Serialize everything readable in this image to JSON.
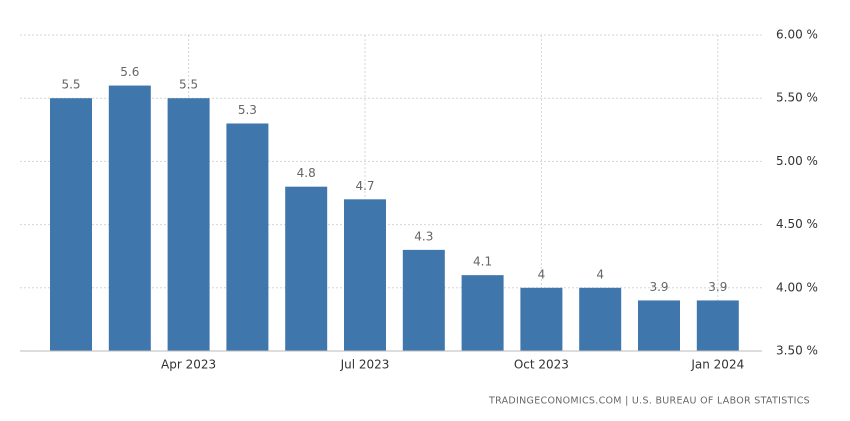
{
  "chart_data": {
    "type": "bar",
    "categories": [
      null,
      null,
      "Apr 2023",
      null,
      null,
      "Jul 2023",
      null,
      null,
      "Oct 2023",
      null,
      null,
      "Jan 2024"
    ],
    "values": [
      5.5,
      5.6,
      5.5,
      5.3,
      4.8,
      4.7,
      4.3,
      4.1,
      4,
      4,
      3.9,
      3.9
    ],
    "color": "#3f77ad",
    "ylim": [
      3.5,
      6.0
    ],
    "yticks": [
      {
        "value": 3.5,
        "label": "3.50 %"
      },
      {
        "value": 4.0,
        "label": "4.00 %"
      },
      {
        "value": 4.5,
        "label": "4.50 %"
      },
      {
        "value": 5.0,
        "label": "5.00 %"
      },
      {
        "value": 5.5,
        "label": "5.50 %"
      },
      {
        "value": 6.0,
        "label": "6.00 %"
      }
    ],
    "grid": true,
    "source": "TRADINGECONOMICS.COM | U.S. BUREAU OF LABOR STATISTICS"
  }
}
